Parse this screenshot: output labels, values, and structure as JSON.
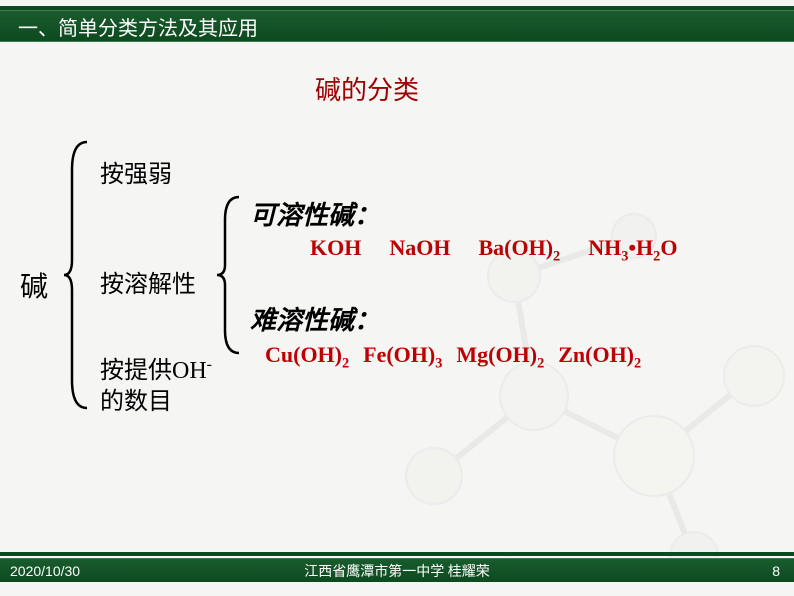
{
  "header": {
    "title": "一、简单分类方法及其应用"
  },
  "slide_title": "碱的分类",
  "root_label": "碱",
  "criteria": {
    "c1": "按强弱",
    "c2": "按溶解性",
    "c3_line1": "按提供OH",
    "c3_sup": "-",
    "c3_line2": "的数目"
  },
  "groups": {
    "soluble_label": "可溶性碱：",
    "insoluble_label": "难溶性碱："
  },
  "formulas": {
    "soluble": [
      {
        "t": "KOH",
        "sub": ""
      },
      {
        "t": "NaOH",
        "sub": ""
      },
      {
        "t": "Ba(OH)",
        "sub": "2"
      },
      {
        "t": "NH",
        "sub": "3",
        "after": "•H",
        "sub2": "2",
        "after2": "O"
      }
    ],
    "insoluble": [
      {
        "t": "Cu(OH)",
        "sub": "2"
      },
      {
        "t": "Fe(OH)",
        "sub": "3"
      },
      {
        "t": "Mg(OH)",
        "sub": "2"
      },
      {
        "t": "Zn(OH)",
        "sub": "2"
      }
    ]
  },
  "footer": {
    "date": "2020/10/30",
    "center": "江西省鹰潭市第一中学 桂耀荣",
    "page": "8"
  },
  "colors": {
    "header_bg": "#0d4a1f",
    "title_color": "#a00000",
    "formula_color": "#c00000",
    "text_color": "#000000",
    "footer_text": "#ffffff"
  }
}
